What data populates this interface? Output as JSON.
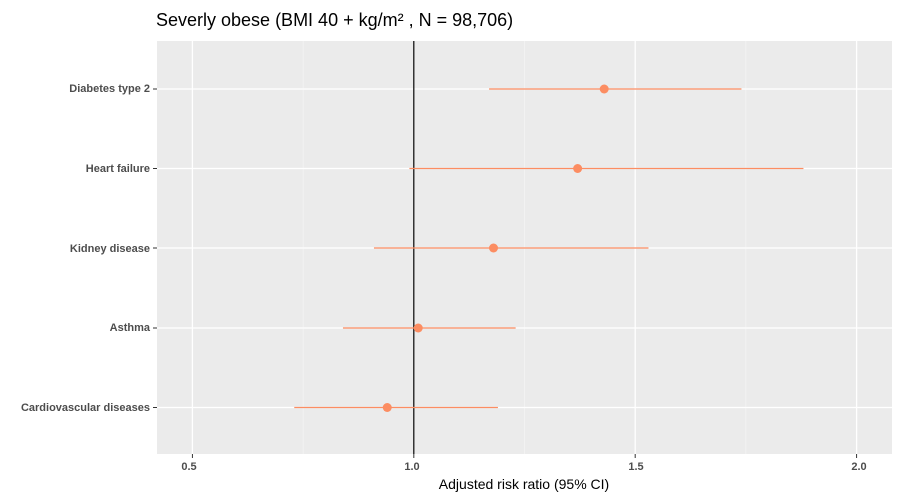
{
  "chart_data": {
    "type": "forest",
    "title": "Severly obese (BMI 40 +  kg/m² ,  N = 98,706)",
    "xlabel": "Adjusted risk ratio (95% CI)",
    "ylabel": "",
    "xlim": [
      0.42,
      2.08
    ],
    "x_ticks": [
      "0.5",
      "1.0",
      "1.5",
      "2.0"
    ],
    "reference_line": 1.0,
    "grid": true,
    "colors": {
      "point": "#fc8d62",
      "panel": "#ebebeb",
      "grid": "#ffffff",
      "reference": "#000000"
    },
    "categories": [
      "Diabetes type 2",
      "Heart failure",
      "Kidney disease",
      "Asthma",
      "Cardiovascular diseases"
    ],
    "estimates": [
      1.43,
      1.37,
      1.18,
      1.01,
      0.94
    ],
    "ci_lower": [
      1.17,
      0.99,
      0.91,
      0.84,
      0.73
    ],
    "ci_upper": [
      1.74,
      1.88,
      1.53,
      1.23,
      1.19
    ]
  }
}
